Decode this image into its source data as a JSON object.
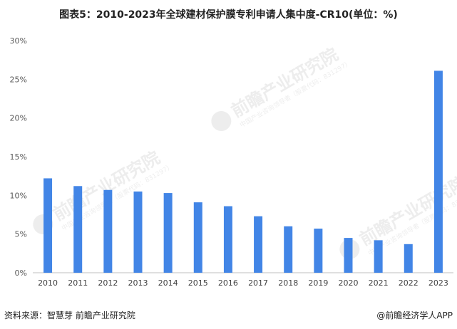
{
  "title": "图表5：2010-2023年全球建材保护膜专利申请人集中度-CR10(单位：%)",
  "watermark": {
    "main": "前瞻产业研究院",
    "sub": "中国产业咨询领导者（股票代码：831297）"
  },
  "footer": {
    "source": "资料来源：智慧芽 前瞻产业研究院",
    "credit": "@前瞻经济学人APP"
  },
  "chart_data": {
    "type": "bar",
    "title": "图表5：2010-2023年全球建材保护膜专利申请人集中度-CR10(单位：%)",
    "categories": [
      "2010",
      "2011",
      "2012",
      "2013",
      "2014",
      "2015",
      "2016",
      "2017",
      "2018",
      "2019",
      "2020",
      "2021",
      "2022",
      "2023"
    ],
    "series": [
      {
        "values": [
          12.2,
          11.2,
          10.7,
          10.5,
          10.3,
          9.1,
          8.6,
          7.3,
          6.0,
          5.7,
          4.5,
          4.2,
          3.7,
          26.1
        ]
      }
    ],
    "ylim": [
      0,
      30
    ],
    "yticks": [
      "0%",
      "5%",
      "10%",
      "15%",
      "20%",
      "25%",
      "30%"
    ],
    "ytick_values": [
      0,
      5,
      10,
      15,
      20,
      25,
      30
    ],
    "bar_color": "#4285e6",
    "grid": false,
    "legend": "none"
  }
}
